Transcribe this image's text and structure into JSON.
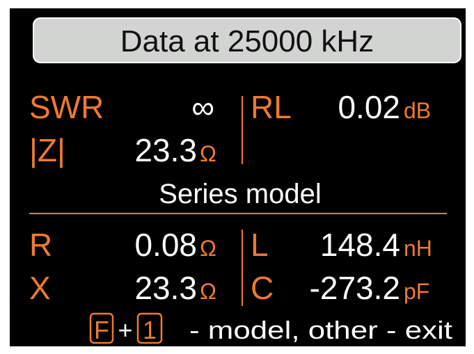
{
  "header": {
    "title": "Data at 25000 kHz"
  },
  "top": {
    "swr_label": "SWR",
    "swr_value": "∞",
    "rl_label": "RL",
    "rl_value": "0.02",
    "rl_unit": "dB",
    "z_label": "|Z|",
    "z_value": "23.3",
    "z_unit": "Ω"
  },
  "model": "Series model",
  "bottom": {
    "r_label": "R",
    "r_value": "0.08",
    "r_unit": "Ω",
    "l_label": "L",
    "l_value": "148.4",
    "l_unit": "nH",
    "x_label": "X",
    "x_value": "23.3",
    "x_unit": "Ω",
    "c_label": "C",
    "c_value": "-273.2",
    "c_unit": "pF"
  },
  "footer": {
    "key1": "F",
    "plus": "+",
    "key2": "1",
    "text": "- model, other - exit"
  }
}
